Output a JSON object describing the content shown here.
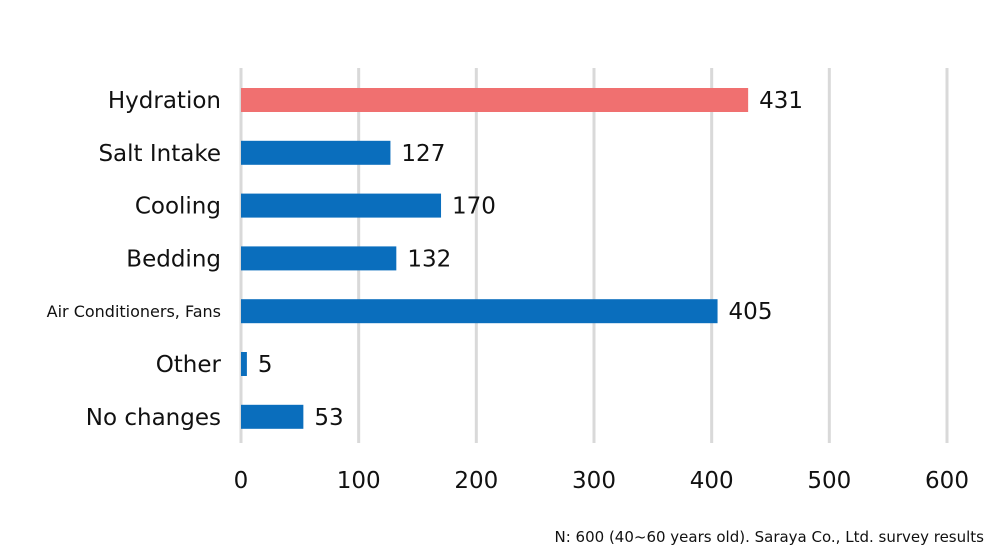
{
  "chart_data": {
    "type": "bar",
    "orientation": "horizontal",
    "categories": [
      "Hydration",
      "Salt Intake",
      "Cooling",
      "Bedding",
      "Air Conditioners, Fans",
      "Other",
      "No changes"
    ],
    "values": [
      431,
      127,
      170,
      132,
      405,
      5,
      53
    ],
    "value_labels": [
      "431",
      "127",
      "170",
      "132",
      "405",
      "5",
      "53"
    ],
    "xlim": [
      0,
      600
    ],
    "x_ticks": [
      0,
      100,
      200,
      300,
      400,
      500,
      600
    ],
    "x_tick_labels": [
      "0",
      "100",
      "200",
      "300",
      "400",
      "500",
      "600"
    ],
    "grid": "vertical",
    "legend": "none",
    "colors": {
      "default": "#0a6ebd",
      "highlight": "#f07070",
      "grid": "#d9d9d9"
    },
    "highlight_index": 0
  },
  "footnote": "N: 600 (40~60 years old). Saraya Co., Ltd. survey results"
}
